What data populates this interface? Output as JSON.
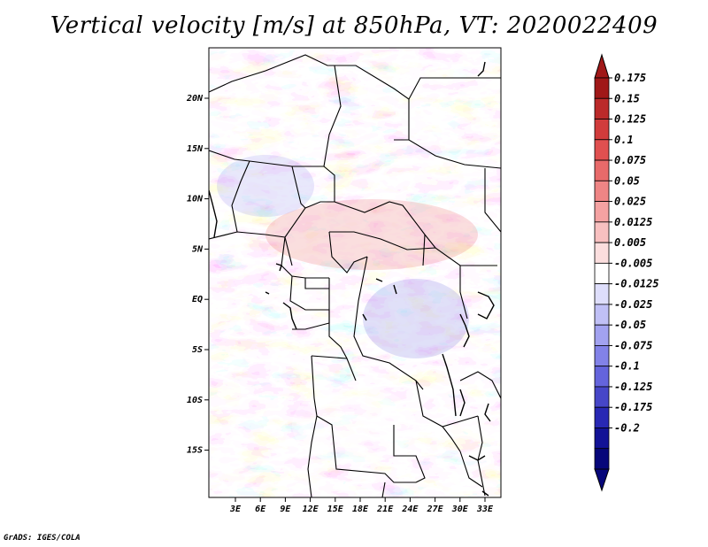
{
  "title": "Vertical velocity [m/s] at 850hPa, VT: 2020022409",
  "credit": "GrADS: IGES/COLA",
  "map": {
    "x_ticks": [
      "3E",
      "6E",
      "9E",
      "12E",
      "15E",
      "18E",
      "21E",
      "24E",
      "27E",
      "30E",
      "33E"
    ],
    "y_ticks": [
      "20N",
      "15N",
      "10N",
      "5N",
      "EQ",
      "5S",
      "10S",
      "15S"
    ]
  },
  "colorbar": {
    "labels": [
      "0.175",
      "0.15",
      "0.125",
      "0.1",
      "0.075",
      "0.05",
      "0.025",
      "0.0125",
      "0.005",
      "-0.005",
      "-0.0125",
      "-0.025",
      "-0.05",
      "-0.075",
      "-0.1",
      "-0.125",
      "-0.175",
      "-0.2"
    ],
    "colors": [
      "#a01818",
      "#bb2a2a",
      "#d13c3c",
      "#e05050",
      "#e86a6a",
      "#ef8585",
      "#f4a2a2",
      "#f8c0c0",
      "#fbdede",
      "#ffffff",
      "#dedefb",
      "#c0c0f6",
      "#a2a2f0",
      "#8282e8",
      "#6464dc",
      "#4646c8",
      "#2828b4",
      "#121296",
      "#07077a"
    ],
    "top_arrow_color": "#a01818",
    "bottom_arrow_color": "#07077a"
  }
}
